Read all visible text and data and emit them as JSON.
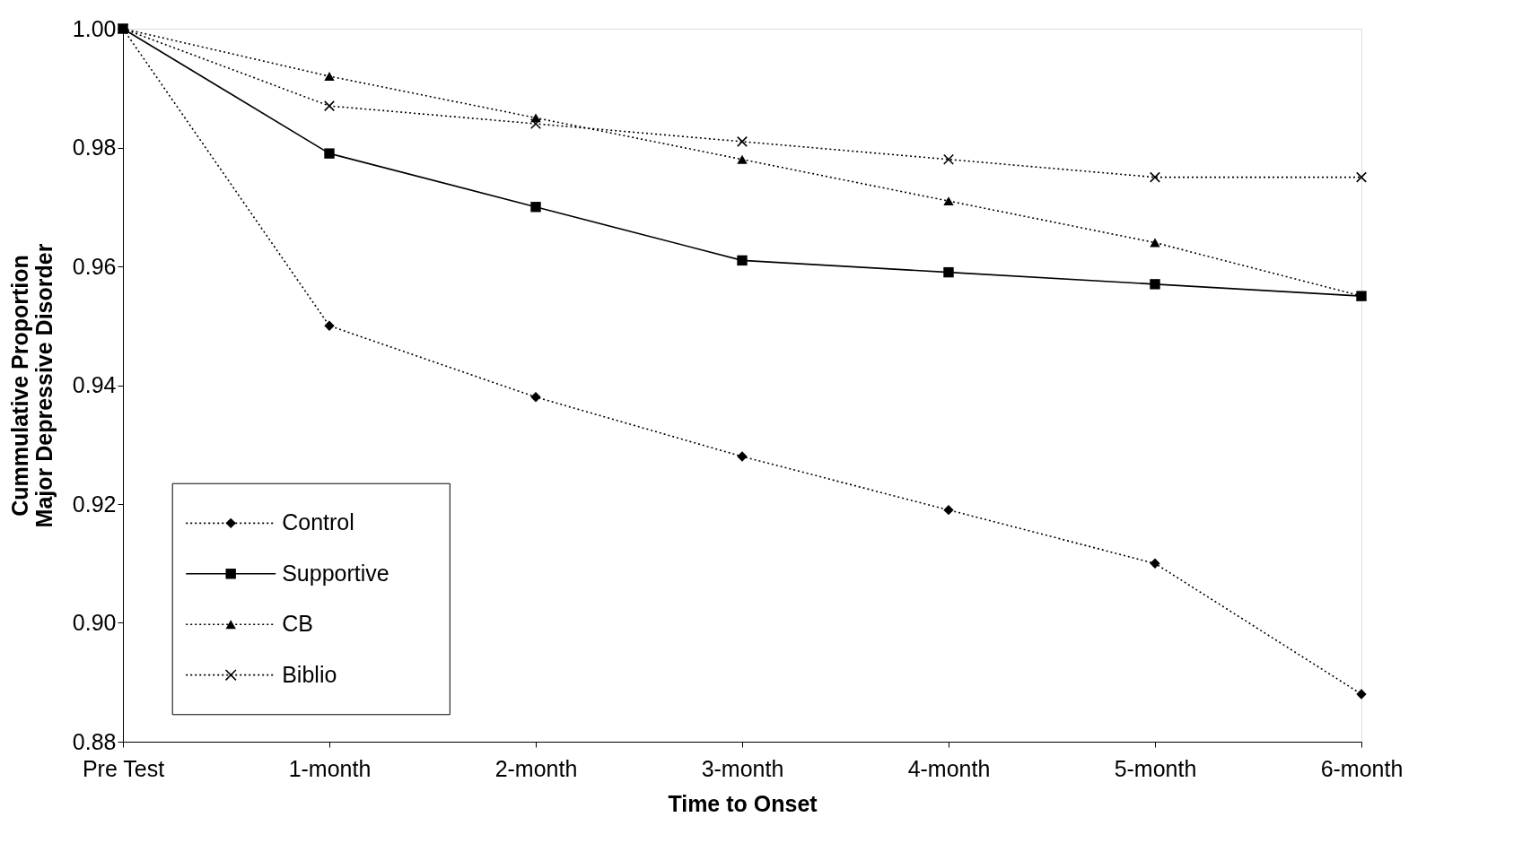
{
  "chart_data": {
    "type": "line",
    "xlabel": "Time to Onset",
    "ylabel": "Cummulative Proportion Major Depressive Disorder",
    "categories": [
      "Pre Test",
      "1-month",
      "2-month",
      "3-month",
      "4-month",
      "5-month",
      "6-month"
    ],
    "ylim": [
      0.88,
      1.0
    ],
    "yticks": [
      {
        "value": 0.88,
        "label": "0.88"
      },
      {
        "value": 0.9,
        "label": "0.90"
      },
      {
        "value": 0.92,
        "label": "0.92"
      },
      {
        "value": 0.94,
        "label": "0.94"
      },
      {
        "value": 0.96,
        "label": "0.96"
      },
      {
        "value": 0.98,
        "label": "0.98"
      },
      {
        "value": 1.0,
        "label": "1.00"
      }
    ],
    "grid": false,
    "legend": "bottom left",
    "series": [
      {
        "name": "Control",
        "color": "#000000",
        "marker": "diamond",
        "line_style": "dotted",
        "values": [
          1.0,
          0.95,
          0.938,
          0.928,
          0.919,
          0.91,
          0.888
        ]
      },
      {
        "name": "Supportive",
        "color": "#000000",
        "marker": "square",
        "line_style": "solid",
        "values": [
          1.0,
          0.979,
          0.97,
          0.961,
          0.959,
          0.957,
          0.955
        ]
      },
      {
        "name": "CB",
        "color": "#000000",
        "marker": "triangle",
        "line_style": "dotted",
        "values": [
          1.0,
          0.992,
          0.985,
          0.978,
          0.971,
          0.964,
          0.955
        ]
      },
      {
        "name": "Biblio",
        "color": "#000000",
        "marker": "cross",
        "line_style": "dotted",
        "values": [
          1.0,
          0.987,
          0.984,
          0.981,
          0.978,
          0.975,
          0.975
        ]
      }
    ]
  }
}
